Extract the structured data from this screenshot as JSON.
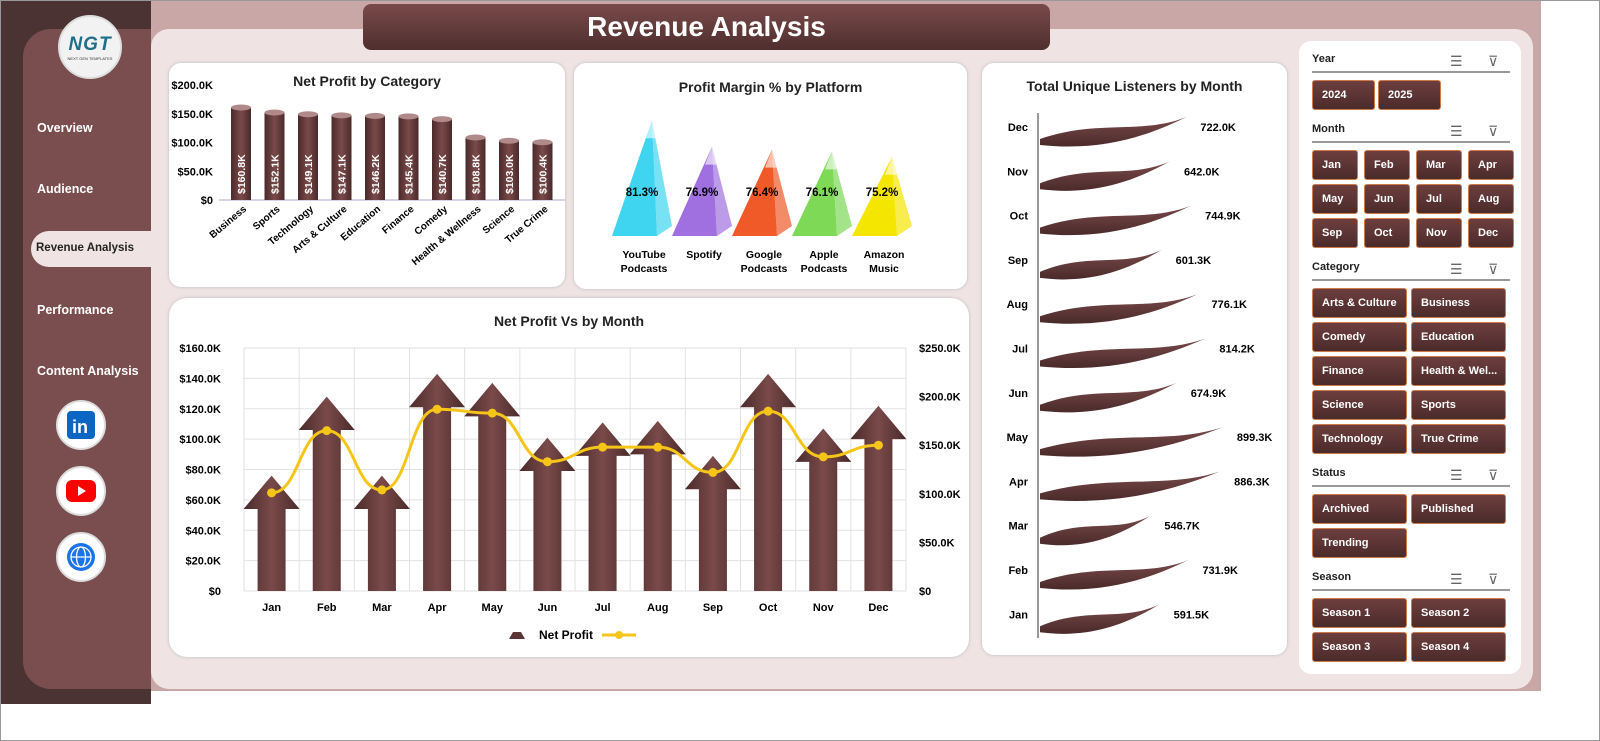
{
  "app": {
    "title": "Revenue Analysis",
    "logo_text": "NGT",
    "logo_sub": "NEXT GEN TEMPLATES"
  },
  "sidebar": {
    "items": [
      {
        "label": "Overview"
      },
      {
        "label": "Audience"
      },
      {
        "label": "Revenue Analysis",
        "active": true
      },
      {
        "label": "Performance"
      },
      {
        "label": "Content Analysis"
      }
    ],
    "social": [
      {
        "icon": "linkedin-icon",
        "color": "#0a66c2"
      },
      {
        "icon": "youtube-icon",
        "color": "#ff0000"
      },
      {
        "icon": "globe-icon",
        "color": "#1a73e8"
      }
    ]
  },
  "colors": {
    "brand": "#5a3535",
    "line": "#f5c518",
    "accent_border": "#d07a4a"
  },
  "chart_data": [
    {
      "type": "bar",
      "title": "Net Profit by Category",
      "categories": [
        "Business",
        "Sports",
        "Technology",
        "Arts & Culture",
        "Education",
        "Finance",
        "Comedy",
        "Health & Wellness",
        "Science",
        "True Crime"
      ],
      "values": [
        160.8,
        152.1,
        149.1,
        147.1,
        146.2,
        145.4,
        140.7,
        108.8,
        103.0,
        100.4
      ],
      "data_labels": [
        "$160.8K",
        "$152.1K",
        "$149.1K",
        "$147.1K",
        "$146.2K",
        "$145.4K",
        "$140.7K",
        "$108.8K",
        "$103.0K",
        "$100.4K"
      ],
      "yticks": [
        "$0",
        "$50.0K",
        "$100.0K",
        "$150.0K",
        "$200.0K"
      ],
      "ylim": [
        0,
        200
      ]
    },
    {
      "type": "bar",
      "title": "Profit Margin % by Platform",
      "categories": [
        "YouTube Podcasts",
        "Spotify",
        "Google Podcasts",
        "Apple Podcasts",
        "Amazon Music"
      ],
      "values": [
        81.3,
        76.9,
        76.4,
        76.1,
        75.2
      ],
      "data_labels": [
        "81.3%",
        "76.9%",
        "76.4%",
        "76.1%",
        "75.2%"
      ],
      "colors": [
        "#3fd4f0",
        "#a070e0",
        "#f05a28",
        "#7ed957",
        "#f5e600"
      ]
    },
    {
      "type": "bar",
      "title": "Net Profit Vs  by Month",
      "categories": [
        "Jan",
        "Feb",
        "Mar",
        "Apr",
        "May",
        "Jun",
        "Jul",
        "Aug",
        "Sep",
        "Oct",
        "Nov",
        "Dec"
      ],
      "series": [
        {
          "name": "Net Profit",
          "type": "bar",
          "axis": "left",
          "values": [
            76,
            128,
            76,
            143,
            137,
            101,
            111,
            112,
            89,
            143,
            107,
            122
          ]
        },
        {
          "type": "line",
          "axis": "right",
          "values": [
            101,
            165,
            104,
            187,
            183,
            133,
            148,
            148,
            122,
            185,
            138,
            150
          ]
        }
      ],
      "yticks_left": [
        "$0",
        "$20.0K",
        "$40.0K",
        "$60.0K",
        "$80.0K",
        "$100.0K",
        "$120.0K",
        "$140.0K",
        "$160.0K"
      ],
      "ylim_left": [
        0,
        160
      ],
      "yticks_right": [
        "$0",
        "$50.0K",
        "$100.0K",
        "$150.0K",
        "$200.0K",
        "$250.0K"
      ],
      "ylim_right": [
        0,
        250
      ],
      "legend": "bottom",
      "grid": true
    },
    {
      "type": "bar",
      "orientation": "horizontal",
      "title": "Total Unique Listeners by Month",
      "categories": [
        "Dec",
        "Nov",
        "Oct",
        "Sep",
        "Aug",
        "Jul",
        "Jun",
        "May",
        "Apr",
        "Mar",
        "Feb",
        "Jan"
      ],
      "values": [
        722.0,
        642.0,
        744.9,
        601.3,
        776.1,
        814.2,
        674.9,
        899.3,
        886.3,
        546.7,
        731.9,
        591.5
      ],
      "data_labels": [
        "722.0K",
        "642.0K",
        "744.9K",
        "601.3K",
        "776.1K",
        "814.2K",
        "674.9K",
        "899.3K",
        "886.3K",
        "546.7K",
        "731.9K",
        "591.5K"
      ]
    }
  ],
  "slicers": [
    {
      "title": "Year",
      "cols": 2,
      "items": [
        "2024",
        "2025"
      ]
    },
    {
      "title": "Month",
      "cols": 4,
      "items": [
        "Jan",
        "Feb",
        "Mar",
        "Apr",
        "May",
        "Jun",
        "Jul",
        "Aug",
        "Sep",
        "Oct",
        "Nov",
        "Dec"
      ]
    },
    {
      "title": "Category",
      "cols": 2,
      "items": [
        "Arts & Culture",
        "Business",
        "Comedy",
        "Education",
        "Finance",
        "Health & Wel...",
        "Science",
        "Sports",
        "Technology",
        "True Crime"
      ]
    },
    {
      "title": "Status",
      "cols": 2,
      "items": [
        "Archived",
        "Published",
        "Trending"
      ]
    },
    {
      "title": "Season",
      "cols": 2,
      "items": [
        "Season 1",
        "Season 2",
        "Season 3",
        "Season 4"
      ]
    }
  ]
}
